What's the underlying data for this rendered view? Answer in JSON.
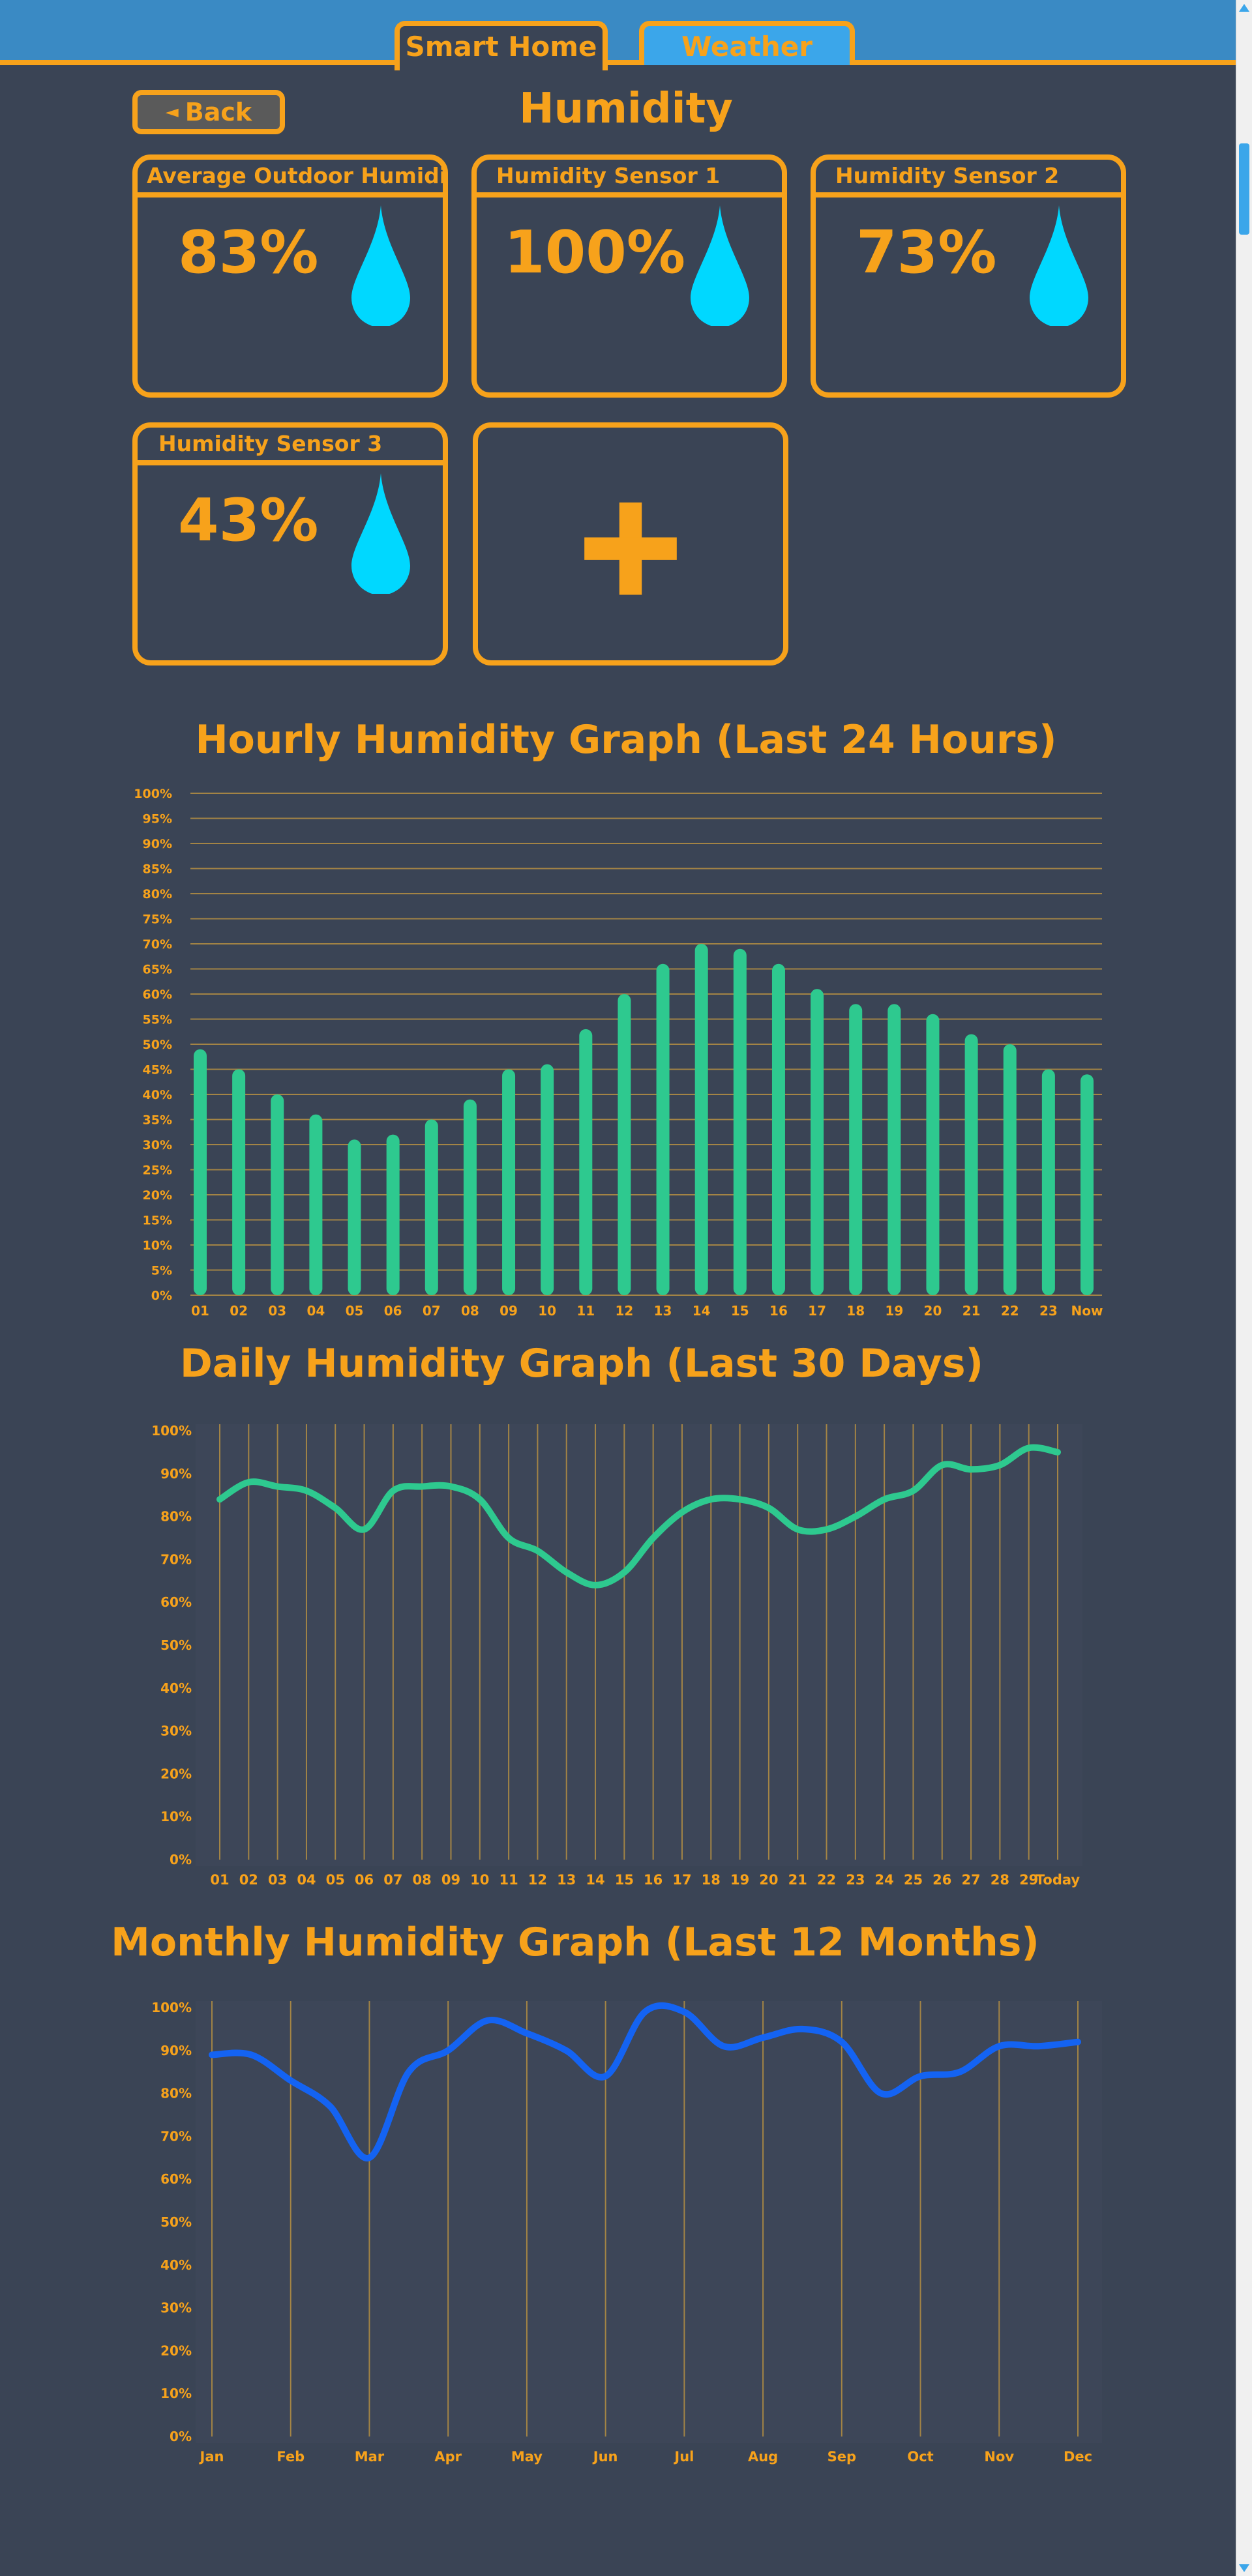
{
  "tabs": [
    {
      "label": "Smart Home",
      "active": true
    },
    {
      "label": "Weather",
      "active": false
    }
  ],
  "back_label": "Back",
  "page_title": "Humidity",
  "cards": [
    {
      "title": "Average Outdoor Humidity",
      "value": "83%",
      "icon": "water-drop-icon"
    },
    {
      "title": "Humidity Sensor 1",
      "value": "100%",
      "icon": "water-drop-icon"
    },
    {
      "title": "Humidity Sensor 2",
      "value": "73%",
      "icon": "water-drop-icon"
    },
    {
      "title": "Humidity Sensor 3",
      "value": "43%",
      "icon": "water-drop-icon"
    }
  ],
  "add_card_icon": "plus-icon",
  "colors": {
    "accent": "#f7a21b",
    "background": "#3a4455",
    "bar": "#2ec98f",
    "daily_line": "#2ec98f",
    "monthly_line": "#1463f2",
    "drop": "#00d8ff",
    "topbar": "#3a8ac4"
  },
  "chart_data": [
    {
      "type": "bar",
      "title": "Hourly Humidity Graph (Last 24 Hours)",
      "categories": [
        "01",
        "02",
        "03",
        "04",
        "05",
        "06",
        "07",
        "08",
        "09",
        "10",
        "11",
        "12",
        "13",
        "14",
        "15",
        "16",
        "17",
        "18",
        "19",
        "20",
        "21",
        "22",
        "23",
        "Now"
      ],
      "values": [
        49,
        45,
        40,
        36,
        31,
        32,
        35,
        39,
        45,
        46,
        53,
        60,
        66,
        70,
        69,
        66,
        61,
        58,
        58,
        56,
        52,
        50,
        45,
        44
      ],
      "yticks": [
        "0%",
        "5%",
        "10%",
        "15%",
        "20%",
        "25%",
        "30%",
        "35%",
        "40%",
        "45%",
        "50%",
        "55%",
        "60%",
        "65%",
        "70%",
        "75%",
        "80%",
        "85%",
        "90%",
        "95%",
        "100%"
      ],
      "ylim": [
        0,
        100
      ],
      "grid": "horizontal"
    },
    {
      "type": "line",
      "title": "Daily Humidity Graph (Last 30 Days)",
      "categories": [
        "01",
        "02",
        "03",
        "04",
        "05",
        "06",
        "07",
        "08",
        "09",
        "10",
        "11",
        "12",
        "13",
        "14",
        "15",
        "16",
        "17",
        "18",
        "19",
        "20",
        "21",
        "22",
        "23",
        "24",
        "25",
        "26",
        "27",
        "28",
        "29",
        "Today"
      ],
      "values": [
        84,
        88,
        87,
        86,
        82,
        77,
        86,
        87,
        87,
        84,
        75,
        72,
        67,
        64,
        67,
        75,
        81,
        84,
        84,
        82,
        77,
        77,
        80,
        84,
        86,
        92,
        91,
        92,
        96,
        95
      ],
      "yticks": [
        "0%",
        "10%",
        "20%",
        "30%",
        "40%",
        "50%",
        "60%",
        "70%",
        "80%",
        "90%",
        "100%"
      ],
      "ylim": [
        0,
        100
      ],
      "grid": "vertical"
    },
    {
      "type": "line",
      "title": "Monthly Humidity Graph (Last 12 Months)",
      "categories": [
        "Jan",
        "Feb",
        "Mar",
        "Apr",
        "May",
        "Jun",
        "Jul",
        "Aug",
        "Sep",
        "Oct",
        "Nov",
        "Dec"
      ],
      "x": [
        0,
        0.5,
        1,
        1.5,
        2,
        2.5,
        3,
        3.5,
        4,
        4.5,
        5,
        5.5,
        6,
        6.5,
        7,
        7.5,
        8,
        8.5,
        9,
        9.5,
        10,
        10.5,
        11
      ],
      "values": [
        89,
        89,
        83,
        77,
        65,
        85,
        90,
        97,
        94,
        90,
        84,
        99,
        99,
        91,
        93,
        95,
        92,
        80,
        84,
        85,
        91,
        91,
        92
      ],
      "yticks": [
        "0%",
        "10%",
        "20%",
        "30%",
        "40%",
        "50%",
        "60%",
        "70%",
        "80%",
        "90%",
        "100%"
      ],
      "ylim": [
        0,
        100
      ],
      "grid": "vertical"
    }
  ]
}
